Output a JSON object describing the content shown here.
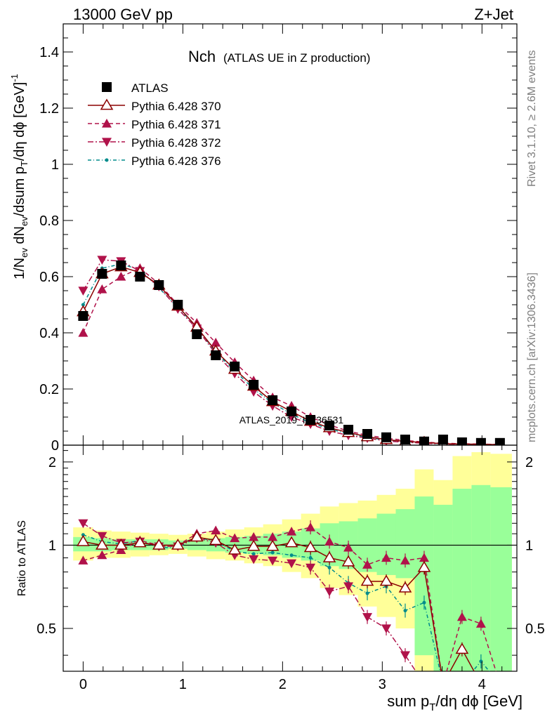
{
  "header": {
    "left": "13000 GeV pp",
    "right": "Z+Jet"
  },
  "side_labels": {
    "rivet": "Rivet 3.1.10, ≥ 2.6M events",
    "mcplots": "mcplots.cern.ch [arXiv:1306.3436]"
  },
  "watermark": "ATLAS_2019_I1736531",
  "colors": {
    "atlas": "#000000",
    "p370": "#8b0000",
    "p371": "#b0124a",
    "p372": "#b0124a",
    "p376": "#008b8b",
    "band_green": "#99ff99",
    "band_yellow": "#ffff99"
  },
  "chart_data": [
    {
      "type": "line",
      "title_main": "Nch",
      "title_sub": "(ATLAS UE in Z production)",
      "xlabel": "sum p_T/dη dϕ [GeV]",
      "ylabel": "1/N_ev dN_ev/dsum p_T/dη dϕ [GeV]^-1",
      "xlim": [
        -0.2,
        4.35
      ],
      "ylim": [
        0,
        1.5
      ],
      "yticks": [
        "0",
        "0.2",
        "0.4",
        "0.6",
        "0.8",
        "1",
        "1.2",
        "1.4"
      ],
      "ytick_values": [
        0,
        0.2,
        0.4,
        0.6,
        0.8,
        1.0,
        1.2,
        1.4
      ],
      "legend_position": "top-left",
      "x": [
        0.0,
        0.19,
        0.38,
        0.57,
        0.76,
        0.95,
        1.14,
        1.33,
        1.52,
        1.71,
        1.9,
        2.09,
        2.28,
        2.47,
        2.66,
        2.85,
        3.04,
        3.23,
        3.42,
        3.61,
        3.8,
        3.99,
        4.18
      ],
      "series": [
        {
          "name": "ATLAS",
          "marker": "square",
          "values": [
            0.46,
            0.61,
            0.64,
            0.6,
            0.57,
            0.5,
            0.395,
            0.32,
            0.28,
            0.215,
            0.16,
            0.12,
            0.09,
            0.07,
            0.055,
            0.04,
            0.028,
            0.02,
            0.013,
            0.02,
            0.01,
            0.008,
            0.008
          ]
        },
        {
          "name": "Pythia 6.428 370",
          "marker": "triangle-up-open",
          "values": [
            0.475,
            0.61,
            0.635,
            0.615,
            0.57,
            0.495,
            0.42,
            0.335,
            0.27,
            0.21,
            0.155,
            0.12,
            0.085,
            0.062,
            0.045,
            0.03,
            0.02,
            0.013,
            0.01,
            0.005,
            0.004,
            0.003,
            0.002
          ]
        },
        {
          "name": "Pythia 6.428 371",
          "marker": "triangle-up",
          "values": [
            0.4,
            0.555,
            0.6,
            0.63,
            0.575,
            0.5,
            0.435,
            0.365,
            0.295,
            0.23,
            0.17,
            0.14,
            0.1,
            0.072,
            0.05,
            0.035,
            0.025,
            0.017,
            0.011,
            0.007,
            0.005,
            0.004,
            0.002
          ]
        },
        {
          "name": "Pythia 6.428 372",
          "marker": "triangle-down",
          "values": [
            0.55,
            0.66,
            0.655,
            0.62,
            0.565,
            0.485,
            0.415,
            0.325,
            0.255,
            0.19,
            0.14,
            0.1,
            0.075,
            0.05,
            0.035,
            0.025,
            0.015,
            0.01,
            0.007,
            0.004,
            0.003,
            0.002,
            0.001
          ]
        },
        {
          "name": "Pythia 6.428 376",
          "marker": "dot",
          "values": [
            0.5,
            0.63,
            0.645,
            0.625,
            0.56,
            0.49,
            0.42,
            0.33,
            0.265,
            0.2,
            0.15,
            0.11,
            0.08,
            0.058,
            0.04,
            0.028,
            0.018,
            0.012,
            0.008,
            0.005,
            0.004,
            0.003,
            0.002
          ]
        }
      ]
    },
    {
      "type": "line",
      "ylabel": "Ratio to ATLAS",
      "xlim": [
        -0.2,
        4.35
      ],
      "ylim": [
        0.35,
        2.3
      ],
      "yticks": [
        "0.5",
        "1",
        "2"
      ],
      "ytick_values": [
        0.5,
        1.0,
        2.0
      ],
      "xticks": [
        "0",
        "1",
        "2",
        "3",
        "4"
      ],
      "xtick_values": [
        0,
        1,
        2,
        3,
        4
      ],
      "bin_edges": [
        -0.1,
        0.1,
        0.285,
        0.475,
        0.665,
        0.855,
        1.045,
        1.235,
        1.425,
        1.615,
        1.805,
        1.995,
        2.185,
        2.375,
        2.565,
        2.755,
        2.945,
        3.135,
        3.325,
        3.515,
        3.705,
        3.895,
        4.085,
        4.3
      ],
      "green_band": [
        [
          0.95,
          1.07
        ],
        [
          0.95,
          1.06
        ],
        [
          0.96,
          1.05
        ],
        [
          0.96,
          1.05
        ],
        [
          0.96,
          1.05
        ],
        [
          0.97,
          1.04
        ],
        [
          0.96,
          1.05
        ],
        [
          0.95,
          1.06
        ],
        [
          0.94,
          1.07
        ],
        [
          0.93,
          1.08
        ],
        [
          0.92,
          1.1
        ],
        [
          0.9,
          1.12
        ],
        [
          0.88,
          1.15
        ],
        [
          0.84,
          1.2
        ],
        [
          0.82,
          1.22
        ],
        [
          0.8,
          1.25
        ],
        [
          0.78,
          1.3
        ],
        [
          0.76,
          1.35
        ],
        [
          0.4,
          1.5
        ],
        [
          0.35,
          1.4
        ],
        [
          0.35,
          1.6
        ],
        [
          0.35,
          1.65
        ],
        [
          0.35,
          1.62
        ]
      ],
      "yellow_band": [
        [
          0.88,
          1.16
        ],
        [
          0.9,
          1.13
        ],
        [
          0.9,
          1.12
        ],
        [
          0.91,
          1.11
        ],
        [
          0.92,
          1.1
        ],
        [
          0.93,
          1.09
        ],
        [
          0.91,
          1.1
        ],
        [
          0.89,
          1.12
        ],
        [
          0.88,
          1.14
        ],
        [
          0.86,
          1.16
        ],
        [
          0.84,
          1.19
        ],
        [
          0.8,
          1.24
        ],
        [
          0.76,
          1.3
        ],
        [
          0.7,
          1.38
        ],
        [
          0.66,
          1.42
        ],
        [
          0.6,
          1.45
        ],
        [
          0.55,
          1.52
        ],
        [
          0.5,
          1.6
        ],
        [
          0.35,
          1.88
        ],
        [
          0.35,
          1.72
        ],
        [
          0.35,
          2.1
        ],
        [
          0.35,
          2.17
        ],
        [
          0.35,
          2.14
        ]
      ],
      "x": [
        0.0,
        0.19,
        0.38,
        0.57,
        0.76,
        0.95,
        1.14,
        1.33,
        1.52,
        1.71,
        1.9,
        2.09,
        2.28,
        2.47,
        2.66,
        2.85,
        3.04,
        3.23,
        3.42,
        3.61,
        3.8,
        3.99,
        4.18
      ],
      "series": [
        {
          "name": "Pythia 6.428 370",
          "values": [
            1.03,
            1.0,
            1.0,
            1.02,
            1.0,
            1.0,
            1.07,
            1.04,
            0.96,
            0.99,
            0.99,
            1.02,
            0.98,
            0.9,
            0.87,
            0.74,
            0.74,
            0.7,
            0.83,
            0.3,
            0.42,
            0.3,
            0.3
          ]
        },
        {
          "name": "Pythia 6.428 371",
          "values": [
            0.88,
            0.92,
            0.96,
            1.04,
            1.0,
            1.0,
            1.1,
            1.13,
            1.06,
            1.07,
            1.07,
            1.12,
            1.16,
            1.03,
            0.98,
            0.85,
            0.9,
            0.88,
            0.9,
            0.3,
            0.55,
            0.52,
            0.3
          ]
        },
        {
          "name": "Pythia 6.428 372",
          "values": [
            1.2,
            1.08,
            1.02,
            1.03,
            0.99,
            0.99,
            1.06,
            1.02,
            0.92,
            0.89,
            0.88,
            0.86,
            0.83,
            0.68,
            0.71,
            0.55,
            0.5,
            0.4,
            0.3,
            0.3,
            0.3,
            0.3,
            0.3
          ]
        },
        {
          "name": "Pythia 6.428 376",
          "values": [
            1.09,
            1.03,
            1.01,
            1.04,
            0.98,
            0.98,
            1.07,
            1.03,
            0.95,
            0.93,
            0.94,
            0.92,
            0.9,
            0.83,
            0.73,
            0.67,
            0.71,
            0.58,
            0.62,
            0.3,
            0.3,
            0.38,
            0.3
          ]
        }
      ]
    }
  ]
}
